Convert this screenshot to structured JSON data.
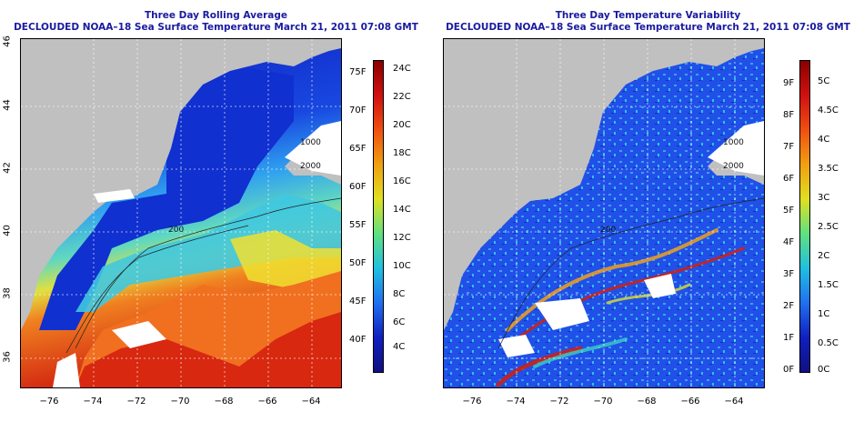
{
  "left": {
    "title": "Three Day Rolling Average",
    "subtitle": "DECLOUDED NOAA–18 Sea Surface Temperature March 21, 2011 07:08 GMT",
    "x_ticks": [
      "−76",
      "−74",
      "−72",
      "−70",
      "−68",
      "−66",
      "−64"
    ],
    "y_ticks": [
      "36",
      "38",
      "40",
      "42",
      "44",
      "46"
    ],
    "colorbar_f": [
      "75F",
      "70F",
      "65F",
      "60F",
      "55F",
      "50F",
      "45F",
      "40F"
    ],
    "colorbar_c": [
      "24C",
      "22C",
      "20C",
      "18C",
      "16C",
      "14C",
      "12C",
      "10C",
      "8C",
      "6C",
      "4C"
    ],
    "contour_labels": [
      "200",
      "2000",
      "1000"
    ]
  },
  "right": {
    "title": "Three Day Temperature Variability",
    "subtitle": "DECLOUDED NOAA–18 Sea Surface Temperature March 21, 2011 07:08 GMT",
    "x_ticks": [
      "−76",
      "−74",
      "−72",
      "−70",
      "−68",
      "−66",
      "−64"
    ],
    "y_ticks": [
      "36",
      "38",
      "40",
      "42",
      "44",
      "46"
    ],
    "colorbar_f": [
      "9F",
      "8F",
      "7F",
      "6F",
      "5F",
      "4F",
      "3F",
      "2F",
      "1F",
      "0F"
    ],
    "colorbar_c": [
      "5C",
      "4.5C",
      "4C",
      "3.5C",
      "3C",
      "2.5C",
      "2C",
      "1.5C",
      "1C",
      "0.5C",
      "0C"
    ],
    "contour_labels": [
      "200",
      "2000",
      "1000"
    ]
  },
  "colors": {
    "title": "#1a1aa0",
    "land": "#c0c0c0",
    "cloud": "#ffffff"
  }
}
